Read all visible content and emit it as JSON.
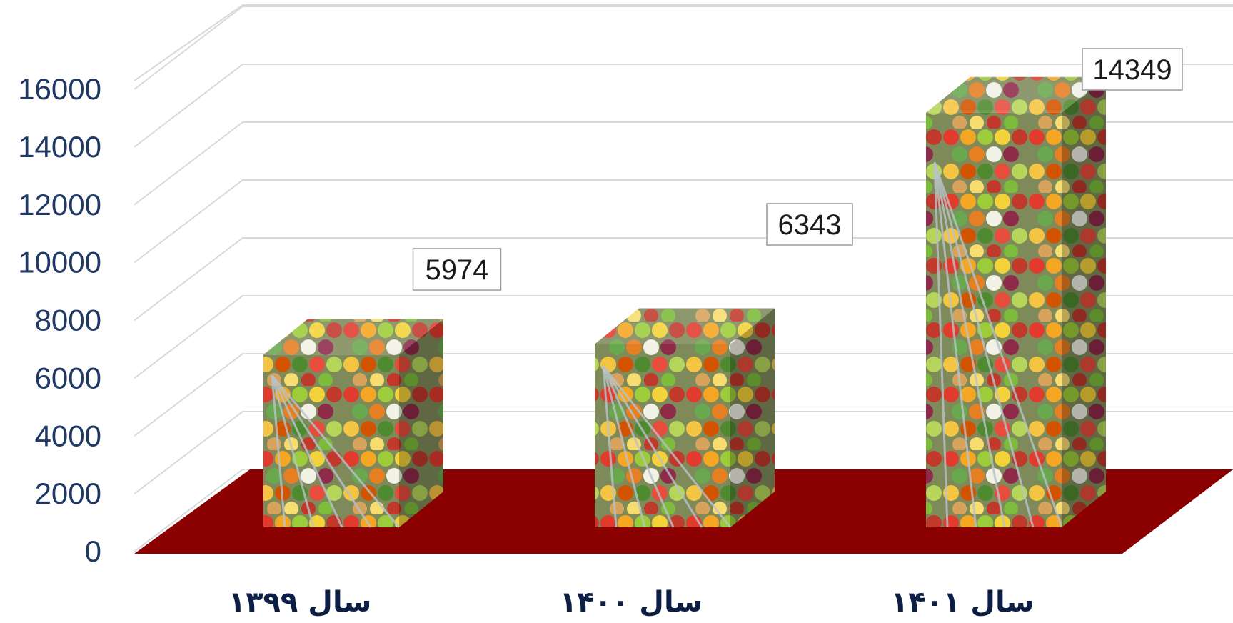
{
  "chart_data": {
    "type": "bar",
    "categories": [
      "سال ۱۳۹۹",
      "سال ۱۴۰۰",
      "سال ۱۴۰۱"
    ],
    "values": [
      5974,
      6343,
      14349
    ],
    "data_labels": [
      "5974",
      "6343",
      "14349"
    ],
    "y_ticks": [
      "0",
      "2000",
      "4000",
      "6000",
      "8000",
      "10000",
      "12000",
      "14000",
      "16000"
    ],
    "ylim": [
      0,
      16000
    ],
    "grid": true,
    "title": "",
    "xlabel": "",
    "ylabel": "",
    "style": "3d-column",
    "colors": {
      "floor": "#8b0000",
      "gridline": "#d9d9d9",
      "tick_text": "#1f3864",
      "category_text": "#0d1e45"
    }
  }
}
